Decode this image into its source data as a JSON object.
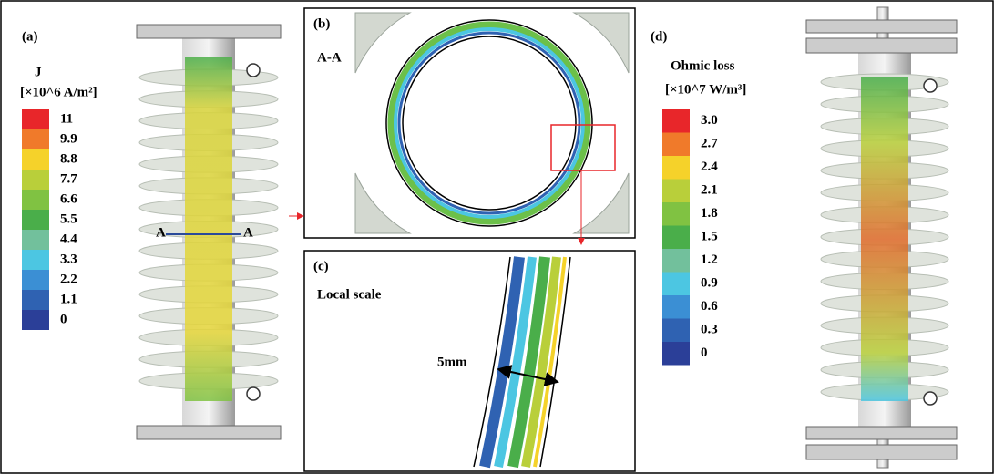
{
  "panel_a": {
    "label": "(a)",
    "section_marker": "A",
    "legend": {
      "title": "J",
      "unit": "[×10^6 A/m²]",
      "levels": [
        "11",
        "9.9",
        "8.8",
        "7.7",
        "6.6",
        "5.5",
        "4.4",
        "3.3",
        "2.2",
        "1.1",
        "0"
      ],
      "colors": [
        "#e8262a",
        "#f07a2a",
        "#f5d22a",
        "#b9cf3a",
        "#80c242",
        "#4aae4a",
        "#72c09c",
        "#4cc6e2",
        "#3b8fd4",
        "#2f62b2",
        "#2b3f98"
      ]
    }
  },
  "panel_b": {
    "label": "(b)",
    "section": "A-A"
  },
  "panel_c": {
    "label": "(c)",
    "caption": "Local scale",
    "dimension": "5mm"
  },
  "panel_d": {
    "label": "(d)",
    "legend": {
      "title": "Ohmic loss",
      "unit": "[×10^7 W/m³]",
      "levels": [
        "3.0",
        "2.7",
        "2.4",
        "2.1",
        "1.8",
        "1.5",
        "1.2",
        "0.9",
        "0.6",
        "0.3",
        "0"
      ],
      "colors": [
        "#e8262a",
        "#f07a2a",
        "#f5d22a",
        "#b9cf3a",
        "#80c242",
        "#4aae4a",
        "#72c09c",
        "#4cc6e2",
        "#3b8fd4",
        "#2f62b2",
        "#2b3f98"
      ]
    }
  }
}
